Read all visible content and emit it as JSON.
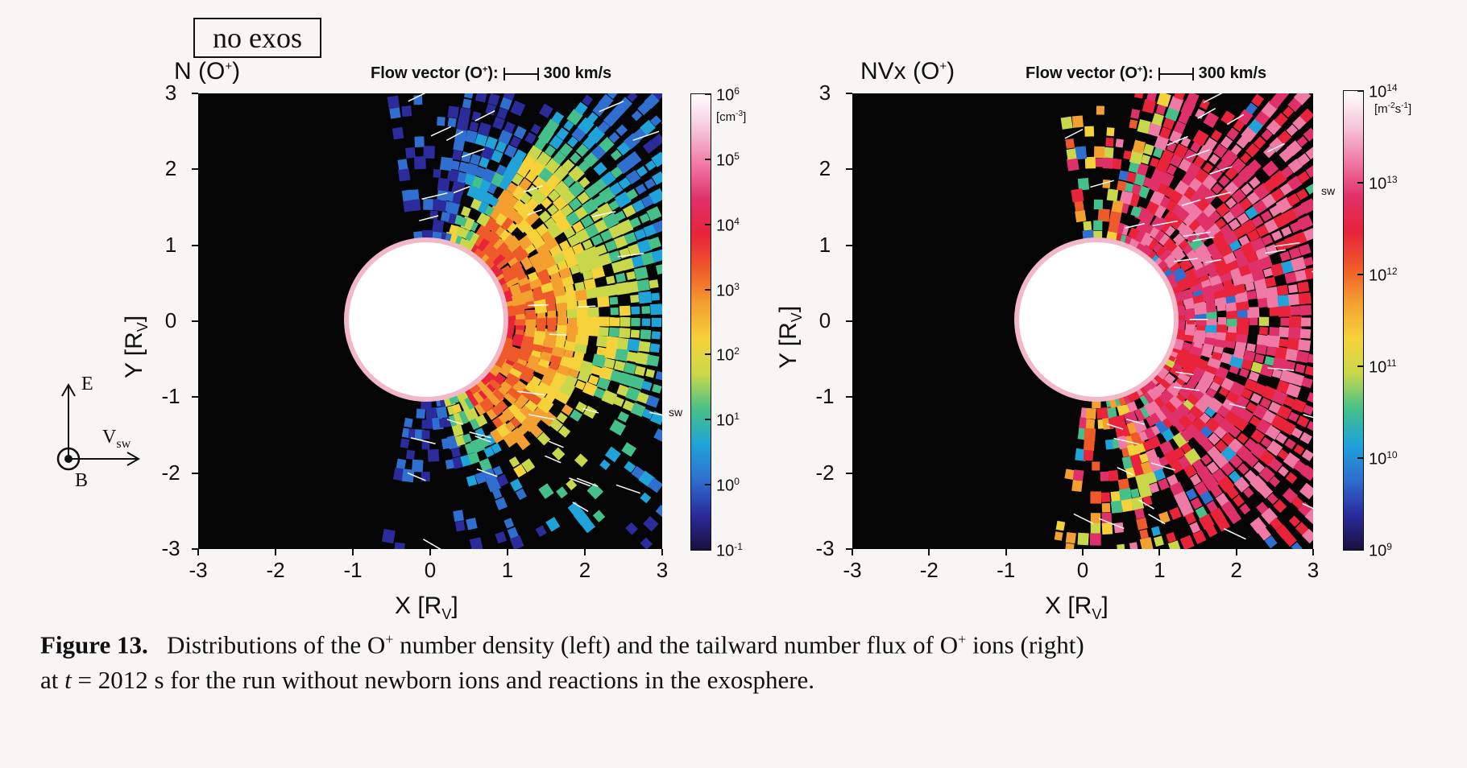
{
  "run_label": "no exos",
  "flow_vector_label": "Flow vector (O",
  "flow_vector_sup": "+",
  "flow_vector_tail": "):",
  "flow_vector_scale": "300 km/s",
  "left_panel": {
    "title": "N (O",
    "title_sup": "+",
    "title_tail": ")",
    "colorbar_unit": "[cm",
    "colorbar_unit_sup": "-3",
    "colorbar_unit_tail": "]",
    "colorbar_ticks": [
      {
        "base": "10",
        "exp": "6"
      },
      {
        "base": "10",
        "exp": "5"
      },
      {
        "base": "10",
        "exp": "4"
      },
      {
        "base": "10",
        "exp": "3"
      },
      {
        "base": "10",
        "exp": "2"
      },
      {
        "base": "10",
        "exp": "1"
      },
      {
        "base": "10",
        "exp": "0"
      },
      {
        "base": "10",
        "exp": "-1"
      }
    ],
    "sw_label": "sw",
    "sw_level": 0.7
  },
  "right_panel": {
    "title": "NVx (O",
    "title_sup": "+",
    "title_tail": ")",
    "colorbar_unit": "[m",
    "colorbar_unit_sup": "-2",
    "colorbar_unit_mid": "s",
    "colorbar_unit_sup2": "-1",
    "colorbar_unit_tail": "]",
    "colorbar_ticks": [
      {
        "base": "10",
        "exp": "14"
      },
      {
        "base": "10",
        "exp": "13"
      },
      {
        "base": "10",
        "exp": "12"
      },
      {
        "base": "10",
        "exp": "11"
      },
      {
        "base": "10",
        "exp": "10"
      },
      {
        "base": "10",
        "exp": "9"
      }
    ],
    "sw_label": "sw",
    "sw_level": 0.22
  },
  "x_ticks": [
    "-3",
    "-2",
    "-1",
    "0",
    "1",
    "2",
    "3"
  ],
  "y_ticks": [
    "3",
    "2",
    "1",
    "0",
    "-1",
    "-2",
    "-3"
  ],
  "x_axis_label": "X [R",
  "x_axis_sub": "V",
  "x_axis_tail": "]",
  "y_axis_label": "Y [R",
  "y_axis_sub": "V",
  "y_axis_tail": "]",
  "compass": {
    "e": "E",
    "vsw": "V",
    "vsw_sub": "sw",
    "b": "B"
  },
  "caption": {
    "label": "Figure 13.",
    "part1": "Distributions of the O",
    "sup1": "+",
    "part2": " number density (left) and the tailward number flux of O",
    "sup2": "+",
    "part3": " ions (right)",
    "line2a": "at ",
    "t_var": "t",
    "line2b": " = 2012 s for the run without newborn ions and reactions in the exosphere."
  },
  "colors": {
    "background": "#050505",
    "planet": "#ffffff",
    "cmap": [
      "#1a1040",
      "#2b2b9c",
      "#2f6fd0",
      "#1fa3d8",
      "#46c08a",
      "#c9d84a",
      "#f6d23a",
      "#f4a030",
      "#ef5a2a",
      "#e8233a",
      "#e0306a",
      "#f07aa6",
      "#f6c6da",
      "#ffffff"
    ]
  }
}
